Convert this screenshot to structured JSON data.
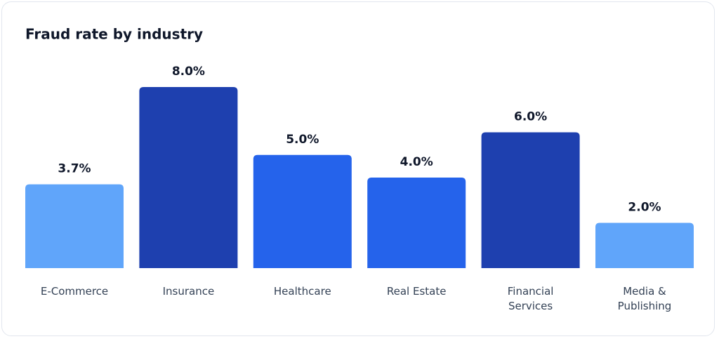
{
  "chart_data": {
    "type": "bar",
    "title": "Fraud rate by industry",
    "categories": [
      "E-Commerce",
      "Insurance",
      "Healthcare",
      "Real Estate",
      "Financial Services",
      "Media & Publishing"
    ],
    "values": [
      3.7,
      8.0,
      5.0,
      4.0,
      6.0,
      2.0
    ],
    "value_labels": [
      "3.7%",
      "8.0%",
      "5.0%",
      "4.0%",
      "6.0%",
      "2.0%"
    ],
    "colors": [
      "#60a5fa",
      "#1e40af",
      "#2563eb",
      "#2563eb",
      "#1e40af",
      "#60a5fa"
    ]
  }
}
